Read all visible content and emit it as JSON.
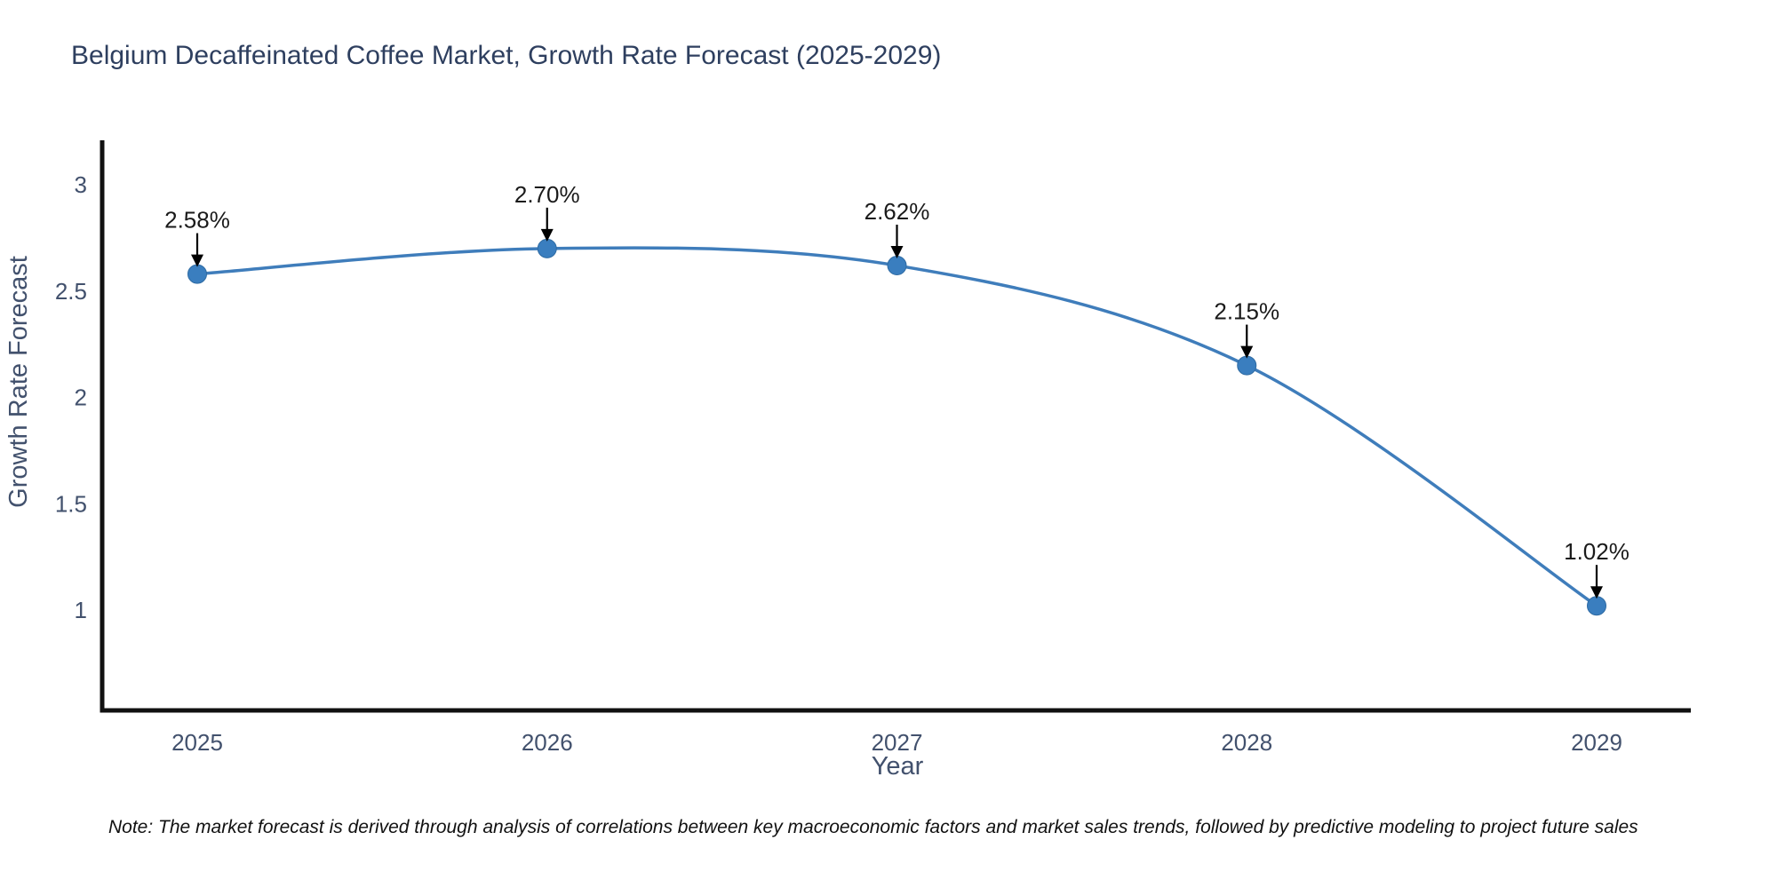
{
  "chart_data": {
    "type": "line",
    "title": "Belgium Decaffeinated Coffee Market, Growth Rate Forecast (2025-2029)",
    "xlabel": "Year",
    "ylabel": "Growth Rate Forecast",
    "categories": [
      "2025",
      "2026",
      "2027",
      "2028",
      "2029"
    ],
    "values": [
      2.58,
      2.7,
      2.62,
      2.15,
      1.02
    ],
    "point_labels": [
      "2.58%",
      "2.70%",
      "2.62%",
      "2.15%",
      "1.02%"
    ],
    "y_ticks": [
      3,
      2.5,
      2,
      1.5,
      1
    ],
    "y_tick_labels": [
      "3",
      "2.5",
      "2",
      "1.5",
      "1"
    ],
    "ylim": [
      0.52,
      3.2
    ],
    "line_shape": "spline",
    "grid": false,
    "legend": "none",
    "colors": {
      "line": "#3f7dbb",
      "marker": "#3a7ebf",
      "marker_edge": "#2f6ba3",
      "axis_line": "#111111",
      "annotation_arrow": "#000000",
      "annotation_text": "#1a1a1a",
      "title_text": "#2e3f5f",
      "axis_text": "#42516d",
      "background": "#ffffff"
    }
  },
  "footnote": {
    "text": "Note: The market forecast is derived through analysis of correlations between key macroeconomic factors and market sales trends, followed by predictive modeling to project future sales"
  }
}
